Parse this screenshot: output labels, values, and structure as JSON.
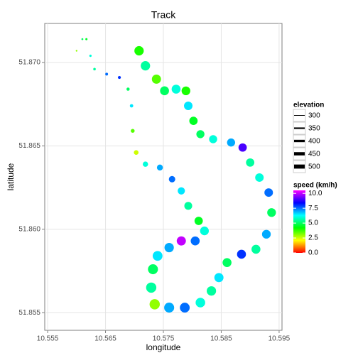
{
  "chart_data": {
    "type": "scatter",
    "title": "Track",
    "x_label": "longitude",
    "y_label": "latitude",
    "x": [
      10.56,
      10.561,
      10.5617,
      10.5624,
      10.5631,
      10.5652,
      10.5674,
      10.5689,
      10.5695,
      10.5697,
      10.5703,
      10.5719,
      10.5744,
      10.5765,
      10.5781,
      10.5793,
      10.5811,
      10.5821,
      10.5805,
      10.5781,
      10.576,
      10.574,
      10.5732,
      10.5729,
      10.5735,
      10.576,
      10.5787,
      10.5814,
      10.5833,
      10.5846,
      10.586,
      10.5885,
      10.591,
      10.5928,
      10.5937,
      10.5932,
      10.5916,
      10.59,
      10.5887,
      10.5867,
      10.5836,
      10.5814,
      10.5802,
      10.5793,
      10.5789,
      10.5772,
      10.5752,
      10.5738,
      10.5719,
      10.5708
    ],
    "y": [
      51.8707,
      51.8714,
      51.8714,
      51.8704,
      51.8696,
      51.8693,
      51.8691,
      51.8684,
      51.8674,
      51.8659,
      51.8646,
      51.8639,
      51.8637,
      51.863,
      51.8623,
      51.8614,
      51.8605,
      51.8599,
      51.8593,
      51.8593,
      51.8589,
      51.8584,
      51.8576,
      51.8565,
      51.8555,
      51.8553,
      51.8553,
      51.8556,
      51.8563,
      51.8571,
      51.858,
      51.8585,
      51.8588,
      51.8597,
      51.861,
      51.8622,
      51.8631,
      51.864,
      51.8649,
      51.8652,
      51.8654,
      51.8657,
      51.8665,
      51.8674,
      51.8683,
      51.8684,
      51.8683,
      51.869,
      51.8698,
      51.8707
    ],
    "size_values": [
      300,
      305,
      310,
      315,
      320,
      325,
      330,
      335,
      340,
      350,
      370,
      385,
      400,
      410,
      430,
      445,
      455,
      465,
      470,
      475,
      480,
      490,
      495,
      500,
      500,
      495,
      490,
      485,
      480,
      475,
      470,
      470,
      470,
      465,
      465,
      460,
      460,
      455,
      455,
      450,
      450,
      450,
      455,
      460,
      465,
      470,
      470,
      475,
      480,
      480
    ],
    "color_values": [
      3.0,
      5.0,
      4.5,
      6.0,
      5.5,
      7.5,
      8.0,
      5.0,
      6.5,
      3.5,
      2.5,
      6.0,
      7.0,
      7.5,
      6.5,
      5.5,
      4.5,
      6.0,
      7.5,
      10.0,
      7.0,
      6.5,
      5.0,
      5.5,
      3.0,
      7.0,
      7.5,
      6.0,
      5.5,
      6.5,
      5.0,
      8.0,
      5.5,
      7.0,
      5.0,
      7.5,
      6.0,
      5.5,
      9.0,
      7.0,
      6.0,
      5.0,
      4.5,
      6.5,
      4.0,
      6.0,
      5.0,
      3.5,
      5.5,
      4.0
    ],
    "xlim": [
      10.5545,
      10.5955
    ],
    "ylim": [
      51.85394,
      51.87234
    ],
    "xticks": [
      10.555,
      10.565,
      10.575,
      10.585,
      10.595
    ],
    "yticks": [
      {
        "value": 51.855,
        "label": "51.855"
      },
      {
        "value": 51.86,
        "label": "51.860"
      },
      {
        "value": 51.865,
        "label": "51.865"
      },
      {
        "value": 51.87,
        "label": "51.870"
      }
    ],
    "grid": true,
    "size_legend": {
      "title": "elevation",
      "values": [
        300,
        350,
        400,
        450,
        500
      ]
    },
    "sizelim": [
      300,
      500
    ],
    "color_legend": {
      "title": "speed (km/h)",
      "ticks": [
        {
          "value": 0,
          "label": "0.0"
        },
        {
          "value": 2.5,
          "label": "2.5"
        },
        {
          "value": 5,
          "label": "5.0"
        },
        {
          "value": 7.5,
          "label": "7.5"
        },
        {
          "value": 10,
          "label": "10.0"
        }
      ]
    },
    "colorlim": [
      0,
      10.5
    ],
    "palette": [
      "#FF0000",
      "#FFFF00",
      "#00FF00",
      "#00FFFF",
      "#0000FF",
      "#FF00FF"
    ],
    "legend_position": "right"
  }
}
